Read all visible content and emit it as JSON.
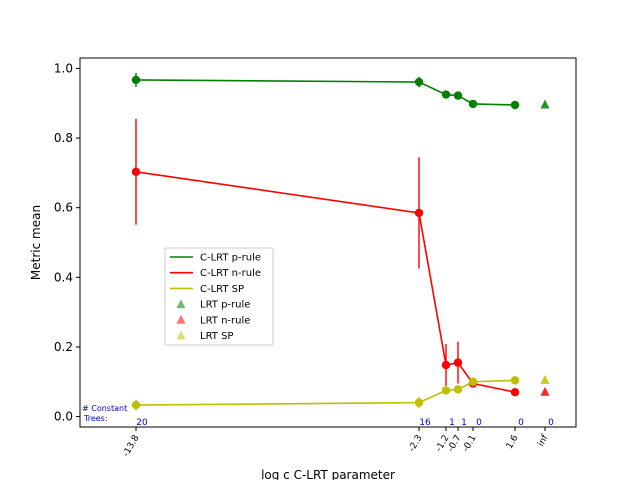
{
  "chart_data": {
    "type": "line",
    "xlabel": "log c C-LRT parameter",
    "ylabel": "Metric mean",
    "ylim": [
      -0.03,
      1.03
    ],
    "grid": false,
    "legend_position": "center-left",
    "x_ticks": [
      {
        "label": "-13.8",
        "x": -13.8
      },
      {
        "label": "-2.3",
        "x": -2.3
      },
      {
        "label": "-1.2",
        "x": -1.2
      },
      {
        "label": "-0.7",
        "x": -0.7
      },
      {
        "label": "-0.1",
        "x": -0.1
      },
      {
        "label": "1.6",
        "x": 1.6
      },
      {
        "label": "inf",
        "x": "inf"
      }
    ],
    "y_ticks": [
      0.0,
      0.2,
      0.4,
      0.6,
      0.8,
      1.0
    ],
    "y_tick_labels": [
      "0.0",
      "0.2",
      "0.4",
      "0.6",
      "0.8",
      "1.0"
    ],
    "series": [
      {
        "name": "C-LRT p-rule",
        "color": "#008000",
        "x": [
          -13.8,
          -2.3,
          -1.2,
          -0.7,
          -0.1,
          1.6
        ],
        "values": [
          0.967,
          0.961,
          0.925,
          0.922,
          0.898,
          0.895
        ],
        "errors": [
          0.02,
          0.015,
          0.008,
          0.008,
          0.006,
          0.005
        ]
      },
      {
        "name": "C-LRT n-rule",
        "color": "#ff0000",
        "x": [
          -13.8,
          -2.3,
          -1.2,
          -0.7,
          -0.1,
          1.6
        ],
        "values": [
          0.703,
          0.585,
          0.148,
          0.155,
          0.095,
          0.07
        ],
        "errors": [
          0.152,
          0.16,
          0.06,
          0.06,
          0.008,
          0.006
        ]
      },
      {
        "name": "C-LRT SP",
        "color": "#bfbf00",
        "x": [
          -13.8,
          -2.3,
          -1.2,
          -0.7,
          -0.1,
          1.6
        ],
        "values": [
          0.033,
          0.04,
          0.075,
          0.078,
          0.1,
          0.104
        ],
        "errors": [
          0.016,
          0.016,
          0.008,
          0.008,
          0.005,
          0.004
        ]
      }
    ],
    "baseline_series": [
      {
        "name": "LRT p-rule",
        "color": "#008000",
        "x": "inf",
        "value": 0.895
      },
      {
        "name": "LRT n-rule",
        "color": "#ff0000",
        "x": "inf",
        "value": 0.07
      },
      {
        "name": "LRT SP",
        "color": "#bfbf00",
        "x": "inf",
        "value": 0.104
      }
    ],
    "constant_trees": {
      "label_line1": "# Constant",
      "label_line2": "Trees:",
      "counts": [
        "20",
        "16",
        "1",
        "1",
        "0",
        "0",
        "0"
      ],
      "color": "#0000cc"
    }
  }
}
